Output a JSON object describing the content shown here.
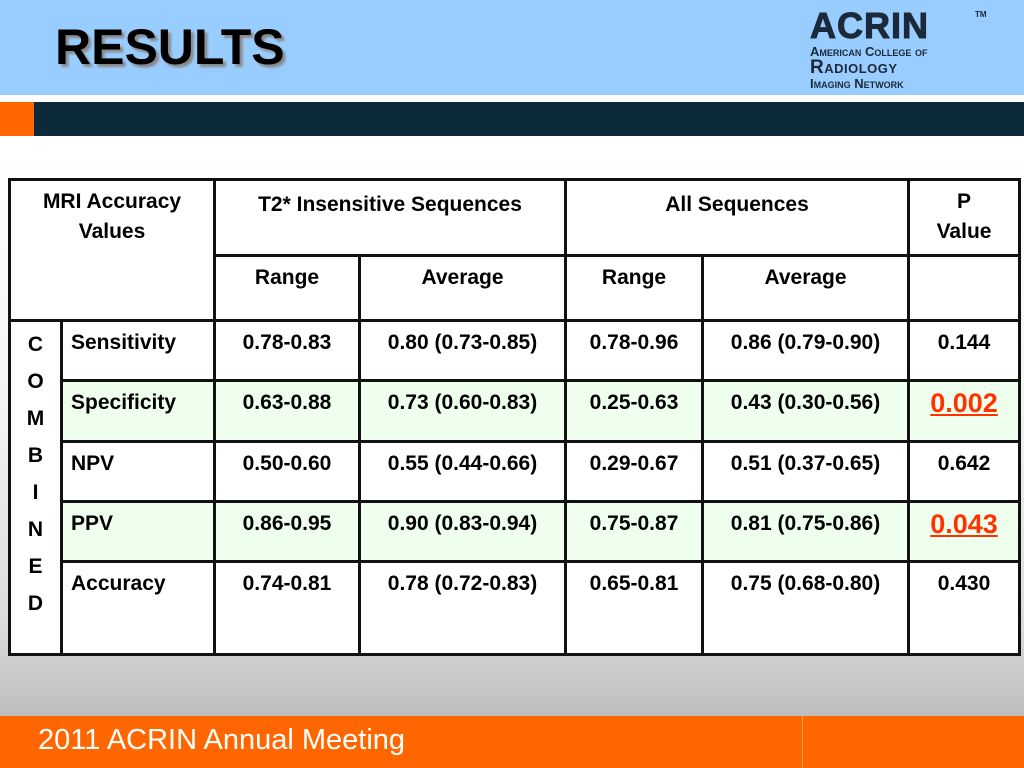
{
  "header": {
    "title": "RESULTS",
    "logo": {
      "word": "ACRIN",
      "tm": "TM",
      "line1": "American College of",
      "line2": "Radiology",
      "line3": "Imaging Network"
    }
  },
  "table": {
    "corner_label": "MRI Accuracy Values",
    "group1_label": "T2* Insensitive Sequences",
    "group2_label": "All Sequences",
    "pvalue_label": "P Value",
    "subheaders": [
      "Range",
      "Average",
      "Range",
      "Average"
    ],
    "combined_letters": [
      "C",
      "O",
      "M",
      "B",
      "I",
      "N",
      "E",
      "D"
    ],
    "rows": [
      {
        "metric": "Sensitivity",
        "t2_range": "0.78-0.83",
        "t2_avg": "0.80 (0.73-0.85)",
        "all_range": "0.78-0.96",
        "all_avg": "0.86 (0.79-0.90)",
        "p": "0.144"
      },
      {
        "metric": "Specificity",
        "t2_range": "0.63-0.88",
        "t2_avg": "0.73 (0.60-0.83)",
        "all_range": "0.25-0.63",
        "all_avg": "0.43 (0.30-0.56)",
        "p": "0.002"
      },
      {
        "metric": "NPV",
        "t2_range": "0.50-0.60",
        "t2_avg": "0.55 (0.44-0.66)",
        "all_range": "0.29-0.67",
        "all_avg": "0.51 (0.37-0.65)",
        "p": "0.642"
      },
      {
        "metric": "PPV",
        "t2_range": "0.86-0.95",
        "t2_avg": "0.90 (0.83-0.94)",
        "all_range": "0.75-0.87",
        "all_avg": "0.81 (0.75-0.86)",
        "p": "0.043"
      },
      {
        "metric": "Accuracy",
        "t2_range": "0.74-0.81",
        "t2_avg": "0.78 (0.72-0.83)",
        "all_range": "0.65-0.81",
        "all_avg": "0.75 (0.68-0.80)",
        "p": "0.430"
      }
    ]
  },
  "footer": {
    "text": "2011 ACRIN Annual Meeting"
  },
  "colors": {
    "header_band": "#99ccff",
    "accent_orange": "#ff6600",
    "dark_bar": "#0d2a3a",
    "row_highlight": "#eeffee",
    "significant_value": "#ff3300"
  }
}
